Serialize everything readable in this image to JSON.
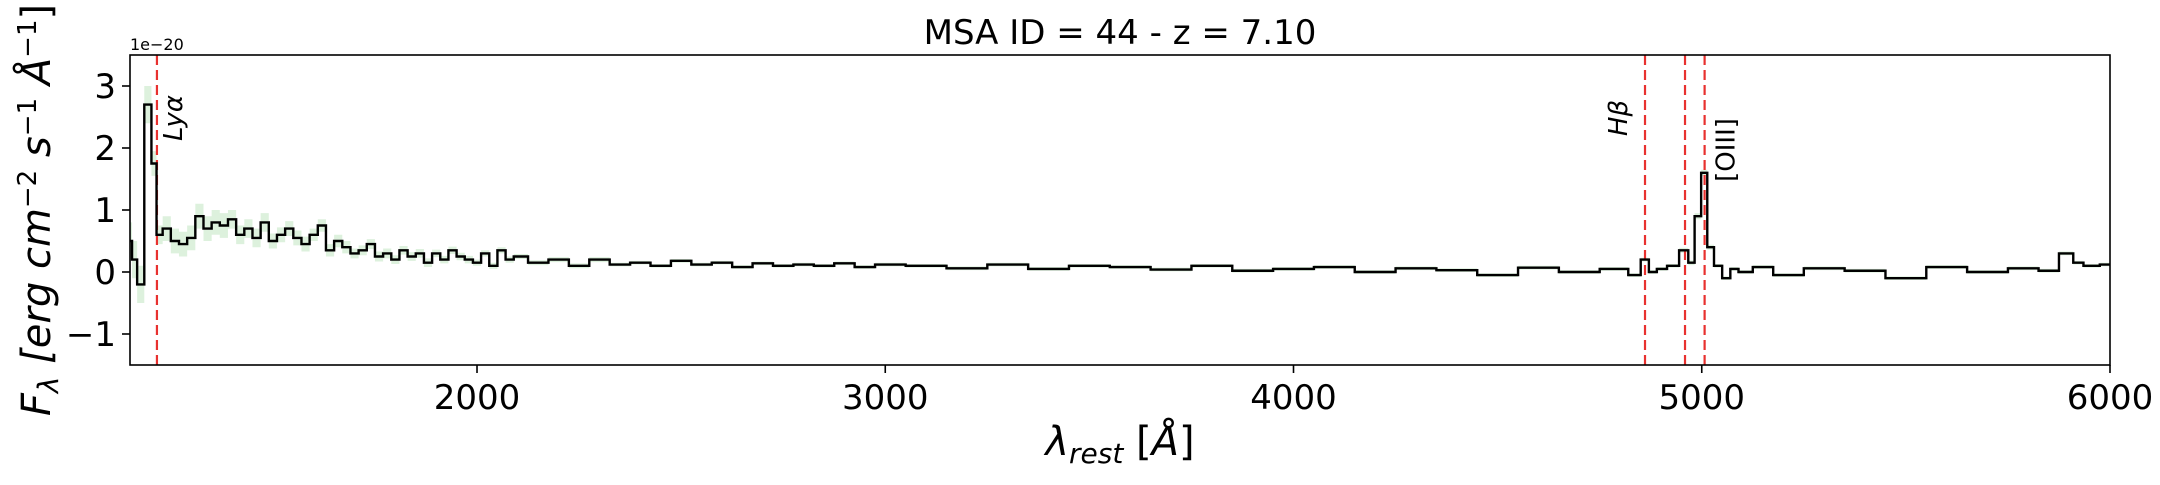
{
  "chart_data": {
    "type": "line",
    "title": "MSA ID = 44 - z = 7.10",
    "xlabel": "λ_rest [Å]",
    "ylabel": "F_λ [erg cm^-2 s^-1 Å^-1]",
    "y_offset_label": "1e−20",
    "xlim": [
      1150,
      6000
    ],
    "ylim": [
      -1.5,
      3.5
    ],
    "xticks": [
      2000,
      3000,
      4000,
      5000,
      6000
    ],
    "yticks": [
      -1,
      0,
      1,
      2,
      3
    ],
    "x_tick_labels": [
      "2000",
      "3000",
      "4000",
      "5000",
      "6000"
    ],
    "y_tick_labels": [
      "−1",
      "0",
      "1",
      "2",
      "3"
    ],
    "grid": false,
    "legend": "none",
    "colors": {
      "spectrum": "#000000",
      "error_band": "#8fcf8f",
      "emission_lines": "#e8312f"
    },
    "emission_lines": [
      {
        "label": "Lyα",
        "x": 1216
      },
      {
        "label": "Hβ",
        "x": 4861
      },
      {
        "label": "",
        "x": 4959
      },
      {
        "label": "[OIII]",
        "x": 5007
      }
    ],
    "series": [
      {
        "style": "step",
        "x": [
          1150,
          1160,
          1175,
          1195,
          1210,
          1220,
          1240,
          1260,
          1280,
          1300,
          1320,
          1340,
          1360,
          1380,
          1400,
          1420,
          1440,
          1460,
          1480,
          1500,
          1520,
          1540,
          1560,
          1580,
          1600,
          1620,
          1640,
          1660,
          1680,
          1700,
          1720,
          1740,
          1760,
          1780,
          1800,
          1820,
          1840,
          1860,
          1880,
          1900,
          1920,
          1940,
          1960,
          1980,
          2000,
          2020,
          2040,
          2060,
          2080,
          2100,
          2150,
          2200,
          2250,
          2300,
          2350,
          2400,
          2450,
          2500,
          2550,
          2600,
          2650,
          2700,
          2750,
          2800,
          2850,
          2900,
          2950,
          3000,
          3100,
          3200,
          3300,
          3400,
          3500,
          3600,
          3700,
          3800,
          3900,
          4000,
          4100,
          4200,
          4300,
          4400,
          4500,
          4600,
          4700,
          4800,
          4840,
          4861,
          4880,
          4900,
          4930,
          4959,
          4975,
          4990,
          5007,
          5020,
          5040,
          5060,
          5080,
          5100,
          5150,
          5200,
          5300,
          5400,
          5500,
          5600,
          5700,
          5800,
          5850,
          5900,
          5920,
          5950,
          6000
        ],
        "y": [
          0.5,
          0.2,
          -0.2,
          2.7,
          1.75,
          0.6,
          0.7,
          0.5,
          0.45,
          0.55,
          0.9,
          0.7,
          0.8,
          0.75,
          0.85,
          0.6,
          0.7,
          0.55,
          0.8,
          0.5,
          0.6,
          0.7,
          0.55,
          0.45,
          0.6,
          0.75,
          0.35,
          0.5,
          0.4,
          0.3,
          0.35,
          0.45,
          0.25,
          0.3,
          0.2,
          0.35,
          0.25,
          0.3,
          0.15,
          0.3,
          0.2,
          0.35,
          0.25,
          0.2,
          0.15,
          0.3,
          0.1,
          0.35,
          0.2,
          0.25,
          0.15,
          0.2,
          0.1,
          0.2,
          0.12,
          0.15,
          0.1,
          0.18,
          0.12,
          0.15,
          0.08,
          0.14,
          0.1,
          0.12,
          0.1,
          0.14,
          0.08,
          0.12,
          0.1,
          0.06,
          0.12,
          0.05,
          0.1,
          0.08,
          0.04,
          0.1,
          0.02,
          0.05,
          0.08,
          0.0,
          0.06,
          0.03,
          -0.05,
          0.07,
          0.0,
          0.05,
          -0.05,
          0.2,
          0.0,
          0.05,
          0.1,
          0.35,
          0.15,
          0.9,
          1.6,
          0.4,
          0.1,
          -0.1,
          0.05,
          0.0,
          0.08,
          -0.05,
          0.06,
          0.02,
          -0.1,
          0.08,
          0.0,
          0.06,
          0.02,
          0.3,
          0.15,
          0.1,
          0.12
        ],
        "err": [
          0.3,
          0.3,
          0.3,
          0.3,
          0.2,
          0.15,
          0.2,
          0.2,
          0.2,
          0.2,
          0.2,
          0.2,
          0.2,
          0.2,
          0.15,
          0.15,
          0.15,
          0.15,
          0.15,
          0.12,
          0.12,
          0.12,
          0.12,
          0.12,
          0.1,
          0.1,
          0.1,
          0.1,
          0.1,
          0.08,
          0.08,
          0.08,
          0.08,
          0.08,
          0.07,
          0.07,
          0.07,
          0.07,
          0.07,
          0.06,
          0.06,
          0.06,
          0.06,
          0.06,
          0.05,
          0.05,
          0.05,
          0.05,
          0.05,
          0.04,
          0.04,
          0.04,
          0.04,
          0.04,
          0.03,
          0.03,
          0.03,
          0.03,
          0.03,
          0.03,
          0.03,
          0.03,
          0.03,
          0.03,
          0.03,
          0.03,
          0.03,
          0.03,
          0.03,
          0.03,
          0.03,
          0.03,
          0.03,
          0.03,
          0.03,
          0.03,
          0.03,
          0.03,
          0.03,
          0.03,
          0.03,
          0.03,
          0.03,
          0.03,
          0.03,
          0.03,
          0.03,
          0.03,
          0.03,
          0.03,
          0.03,
          0.04,
          0.04,
          0.05,
          0.05,
          0.04,
          0.03,
          0.03,
          0.03,
          0.03,
          0.03,
          0.03,
          0.03,
          0.03,
          0.03,
          0.03,
          0.03,
          0.03,
          0.03,
          0.03,
          0.03,
          0.03,
          0.03
        ]
      }
    ]
  }
}
